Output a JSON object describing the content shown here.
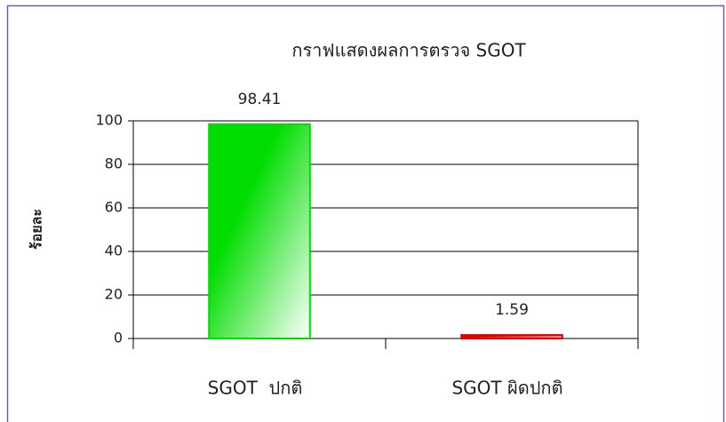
{
  "chart_data": {
    "type": "bar",
    "title": "กราฟแสดงผลการตรวจ SGOT",
    "y_label": "ร้อยละ",
    "categories": [
      "SGOT  ปกติ",
      "SGOT ผิดปกติ"
    ],
    "values": [
      98.41,
      1.59
    ],
    "colors": [
      "#00dd00",
      "#dd0000"
    ],
    "ylim": [
      0,
      100
    ],
    "yticks": [
      0,
      20,
      40,
      60,
      80,
      100
    ],
    "grid": true
  }
}
